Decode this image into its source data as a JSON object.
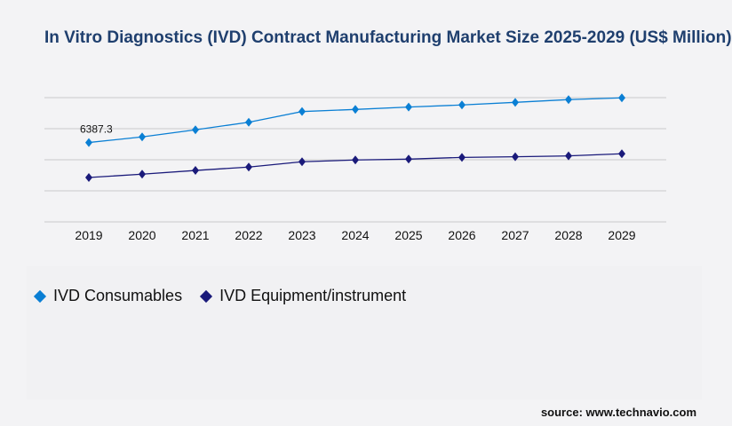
{
  "title": "In Vitro Diagnostics (IVD) Contract Manufacturing Market Size 2025-2029 (US$ Million)",
  "source": "source: www.technavio.com",
  "chart_data": {
    "type": "line",
    "title": "In Vitro Diagnostics (IVD) Contract Manufacturing Market Size 2025-2029 (US$ Million)",
    "x": [
      "2019",
      "2020",
      "2021",
      "2022",
      "2023",
      "2024",
      "2025",
      "2026",
      "2027",
      "2028",
      "2029"
    ],
    "ylim": [
      0,
      10000
    ],
    "grid": true,
    "y_tick_labels_shown": false,
    "legend": "bottom-left",
    "series": [
      {
        "name": "IVD Consumables",
        "color": "#0a7fd4",
        "values": [
          6387.3,
          6840,
          7410,
          8020,
          8880,
          9050,
          9240,
          9410,
          9620,
          9840,
          9980
        ]
      },
      {
        "name": "IVD Equipment/instrument",
        "color": "#1a1a7a",
        "values": [
          3570,
          3840,
          4140,
          4410,
          4840,
          4980,
          5050,
          5190,
          5240,
          5310,
          5480
        ]
      }
    ],
    "annotations": [
      {
        "series": "IVD Consumables",
        "x": "2019",
        "label": "6387.3"
      }
    ]
  }
}
